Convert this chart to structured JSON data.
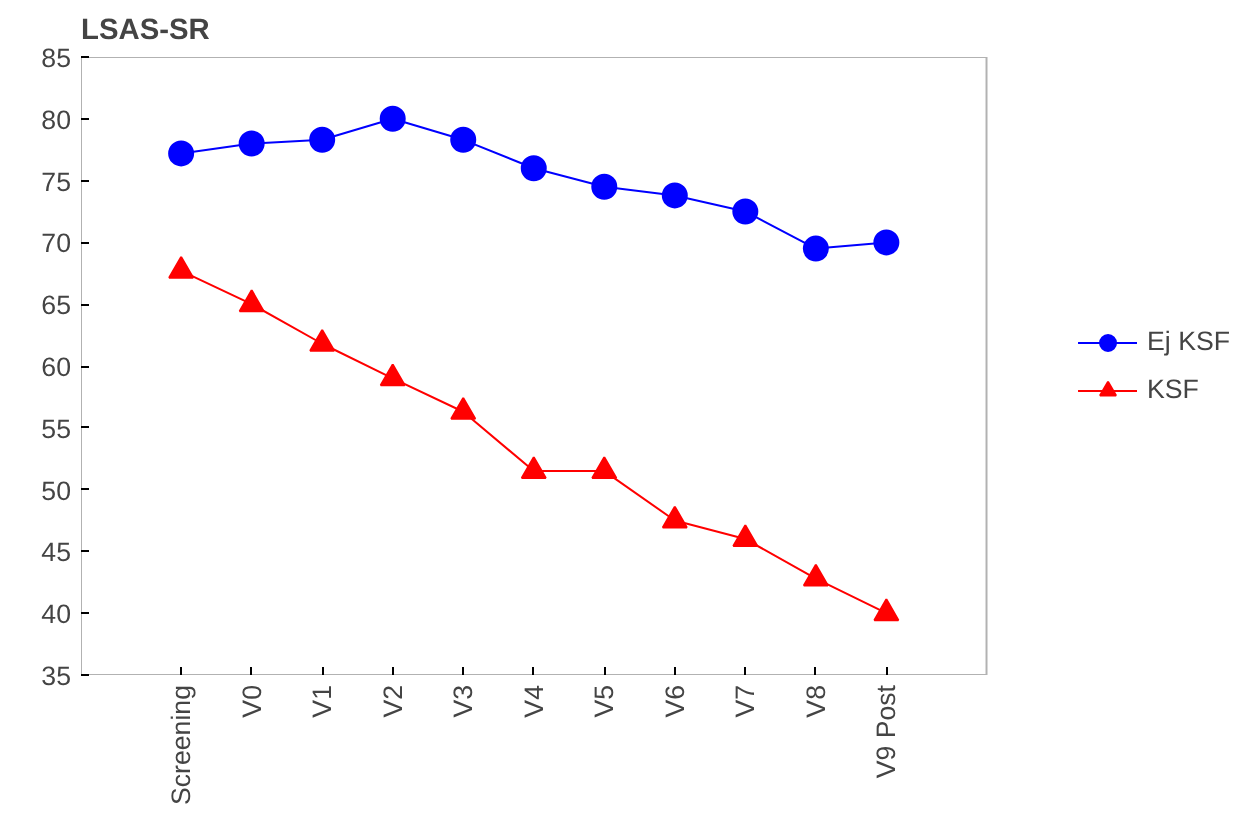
{
  "chart_data": {
    "type": "line",
    "title": "LSAS-SR",
    "categories": [
      "Screening",
      "V0",
      "V1",
      "V2",
      "V3",
      "V4",
      "V5",
      "V6",
      "V7",
      "V8",
      "V9 Post"
    ],
    "ylim": [
      35,
      85
    ],
    "yticks": [
      35,
      40,
      45,
      50,
      55,
      60,
      65,
      70,
      75,
      80,
      85
    ],
    "grid": false,
    "legend": "right",
    "series": [
      {
        "name": "Ej KSF",
        "color": "#0000ff",
        "marker": "circle",
        "values": [
          77.2,
          78,
          78.3,
          80,
          78.3,
          76,
          74.5,
          73.8,
          72.5,
          69.5,
          70
        ]
      },
      {
        "name": "KSF",
        "color": "#ff0000",
        "marker": "triangle",
        "values": [
          67.7,
          65,
          61.8,
          59,
          56.3,
          51.5,
          51.5,
          47.5,
          46,
          42.8,
          40
        ]
      }
    ]
  }
}
